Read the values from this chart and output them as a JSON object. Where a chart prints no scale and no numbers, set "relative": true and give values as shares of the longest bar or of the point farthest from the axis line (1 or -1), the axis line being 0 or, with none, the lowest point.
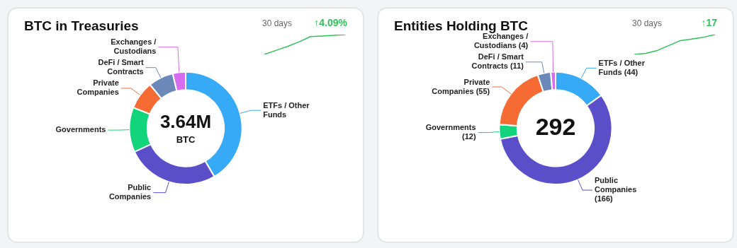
{
  "chart_data": [
    {
      "type": "donut",
      "title": "BTC in Treasuries",
      "categories": [
        "ETFs / Other Funds",
        "Public Companies",
        "Governments",
        "Private Companies",
        "DeFi / Smart Contracts",
        "Exchanges / Custodians"
      ],
      "values": [
        41.5,
        26.6,
        12.9,
        8.1,
        7.2,
        3.7
      ],
      "colors": [
        "#36aaf7",
        "#5a4fc8",
        "#12d47a",
        "#f66a33",
        "#6b88b8",
        "#d86cf0"
      ],
      "annotations": [
        "3.64M",
        "BTC"
      ],
      "legend": false
    },
    {
      "type": "line",
      "relative": true,
      "categories": [
        null,
        null,
        null,
        null,
        null,
        null,
        null,
        null
      ],
      "series": [
        {
          "color": "#2ec35a",
          "values": [
            0,
            0.2,
            0.4,
            0.63,
            0.9,
            0.93,
            0.96,
            1
          ]
        }
      ],
      "annotations": [
        "30 days",
        "↑4.09%"
      ],
      "legend": false,
      "marker": "none"
    },
    {
      "type": "donut",
      "title": "Entities Holding BTC",
      "categories": [
        "ETFs / Other Funds",
        "Public Companies",
        "Governments",
        "Private Companies",
        "DeFi / Smart Contracts",
        "Exchanges / Custodians"
      ],
      "values": [
        44,
        166,
        12,
        55,
        11,
        4
      ],
      "colors": [
        "#36aaf7",
        "#5a4fc8",
        "#12d47a",
        "#f66a33",
        "#6b88b8",
        "#d86cf0"
      ],
      "value_labels": [
        "(44)",
        "(166)",
        "(12)",
        "(55)",
        "(11)",
        "(4)"
      ],
      "annotations": [
        "292"
      ],
      "legend": false
    },
    {
      "type": "line",
      "relative": true,
      "categories": [
        null,
        null,
        null,
        null,
        null,
        null,
        null,
        null
      ],
      "series": [
        {
          "color": "#2ec35a",
          "values": [
            0,
            0.05,
            0.2,
            0.45,
            0.7,
            0.78,
            0.87,
            1
          ]
        }
      ],
      "annotations": [
        "30 days",
        "↑17"
      ],
      "legend": false,
      "marker": "none"
    }
  ]
}
